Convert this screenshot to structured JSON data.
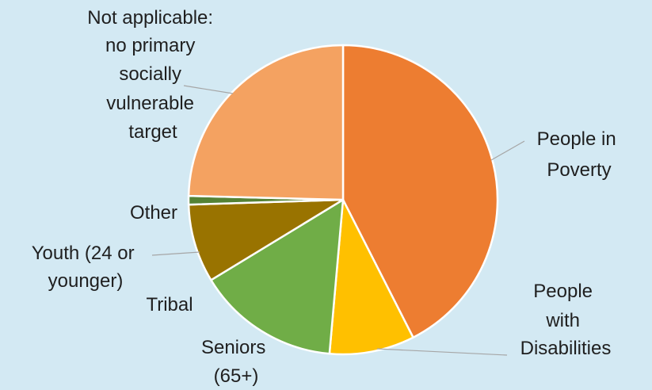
{
  "chart_data": {
    "type": "pie",
    "title": "",
    "categories": [
      "People in Poverty",
      "People with Disabilities",
      "Seniors (65+)",
      "Tribal",
      "Youth (24 or younger)",
      "Other",
      "Not applicable: no primary socially vulnerable target"
    ],
    "values": [
      42.5,
      8.9,
      14.9,
      0.0,
      8.2,
      0.9,
      24.6
    ],
    "colors": [
      "#ed7d31",
      "#ffc000",
      "#70ad47",
      "#6b8e23",
      "#997300",
      "#548235",
      "#f4a261"
    ],
    "labels": [
      {
        "lines": [
          "People in",
          "Poverty"
        ]
      },
      {
        "lines": [
          "People",
          "with",
          "Disabilities"
        ]
      },
      {
        "lines": [
          "Seniors",
          "(65+)"
        ]
      },
      {
        "lines": [
          "Tribal"
        ]
      },
      {
        "lines": [
          "Youth (24 or",
          "younger)"
        ]
      },
      {
        "lines": [
          "Other"
        ]
      },
      {
        "lines": [
          "Not applicable:",
          "no primary",
          "socially",
          "vulnerable",
          "target"
        ]
      }
    ],
    "start_angle_deg": 0,
    "direction": "clockwise",
    "legend": "none"
  }
}
